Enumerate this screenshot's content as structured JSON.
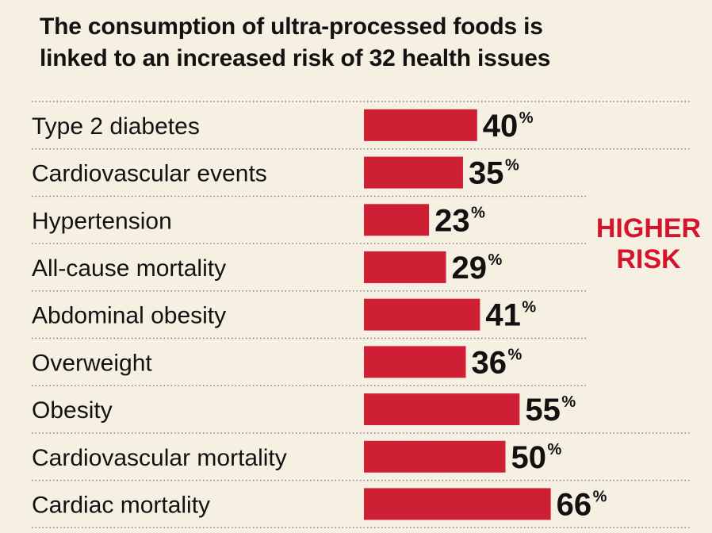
{
  "title_lines": [
    "The consumption of ultra-processed foods is",
    "linked to an increased risk of 32 health issues"
  ],
  "side_label_lines": [
    "HIGHER",
    "RISK"
  ],
  "percent_sign": "%",
  "colors": {
    "background": "#f6f0e2",
    "bar": "#cf1f35",
    "risk_label": "#d4142d",
    "text": "#121212",
    "divider": "#7a7a7a"
  },
  "chart_data": {
    "type": "bar",
    "orientation": "horizontal",
    "title": "The consumption of ultra-processed foods is linked to an increased risk of 32 health issues",
    "categories": [
      "Type 2 diabetes",
      "Cardiovascular events",
      "Hypertension",
      "All-cause mortality",
      "Abdominal obesity",
      "Overweight",
      "Obesity",
      "Cardiovascular mortality",
      "Cardiac mortality"
    ],
    "values": [
      40,
      35,
      23,
      29,
      41,
      36,
      55,
      50,
      66
    ],
    "unit": "%",
    "annotation": "HIGHER RISK",
    "data_labels": true,
    "axes_visible": false,
    "grid": false,
    "row_dividers": "dotted"
  }
}
